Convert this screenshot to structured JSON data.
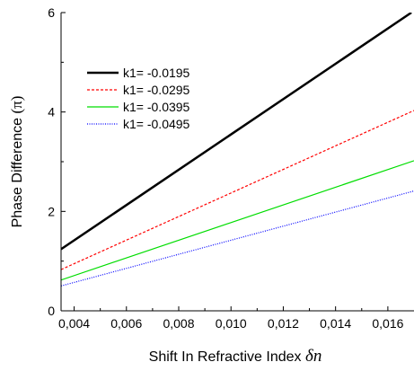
{
  "chart_data": {
    "type": "line",
    "xlabel": "Shift In Refractive Index",
    "xlabel_symbol": "δn",
    "ylabel": "Phase Difference",
    "ylabel_unit": "(π)",
    "xlim": [
      0.0035,
      0.017
    ],
    "ylim": [
      0,
      6
    ],
    "x_ticks": [
      "0,004",
      "0,006",
      "0,008",
      "0,010",
      "0,012",
      "0,014",
      "0,016"
    ],
    "x_tick_values": [
      0.004,
      0.006,
      0.008,
      0.01,
      0.012,
      0.014,
      0.016
    ],
    "y_ticks": [
      "0",
      "2",
      "4",
      "6"
    ],
    "y_tick_values": [
      0,
      2,
      4,
      6
    ],
    "grid": false,
    "legend_position": "top-left",
    "series": [
      {
        "name": "k1= -0.0195",
        "color": "#000000",
        "style": "solid",
        "width": 2.5,
        "x": [
          0.0035,
          0.0169
        ],
        "y": [
          1.24,
          6.0
        ]
      },
      {
        "name": "k1= -0.0295",
        "color": "#ff0000",
        "style": "dashed",
        "width": 1.2,
        "x": [
          0.0035,
          0.017
        ],
        "y": [
          0.83,
          4.03
        ]
      },
      {
        "name": "k1= -0.0395",
        "color": "#00dd00",
        "style": "solid",
        "width": 1.2,
        "x": [
          0.0035,
          0.017
        ],
        "y": [
          0.62,
          3.02
        ]
      },
      {
        "name": "k1= -0.0495",
        "color": "#0000ff",
        "style": "dotted",
        "width": 1.2,
        "x": [
          0.0035,
          0.017
        ],
        "y": [
          0.5,
          2.41
        ]
      }
    ]
  }
}
